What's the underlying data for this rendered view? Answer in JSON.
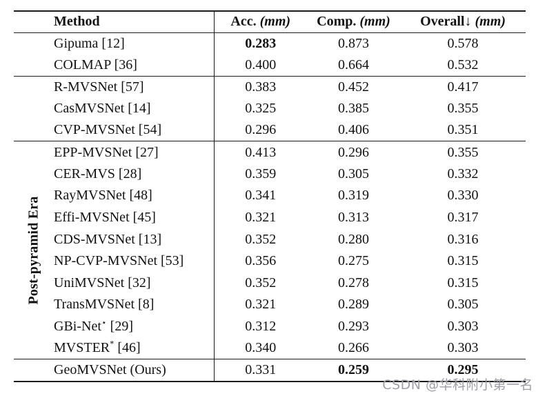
{
  "page": {
    "background": "#ffffff",
    "text_color": "#121212",
    "rule_color": "#1a1a1a"
  },
  "table": {
    "header": {
      "method": "Method",
      "metrics": [
        {
          "label": "Acc.",
          "unit": "(mm)"
        },
        {
          "label": "Comp.",
          "unit": "(mm)"
        },
        {
          "label": "Overall↓",
          "unit": "(mm)"
        }
      ]
    },
    "group_label": "Post-pyramid Era",
    "groups": [
      {
        "name": "traditional",
        "rows": [
          {
            "method": "Gipuma [12]",
            "acc": "0.283",
            "comp": "0.873",
            "overall": "0.578",
            "bold": [
              "acc"
            ]
          },
          {
            "method": "COLMAP [36]",
            "acc": "0.400",
            "comp": "0.664",
            "overall": "0.532",
            "bold": []
          }
        ]
      },
      {
        "name": "pyramid",
        "rows": [
          {
            "method": "R-MVSNet [57]",
            "acc": "0.383",
            "comp": "0.452",
            "overall": "0.417",
            "bold": []
          },
          {
            "method": "CasMVSNet [14]",
            "acc": "0.325",
            "comp": "0.385",
            "overall": "0.355",
            "bold": []
          },
          {
            "method": "CVP-MVSNet [54]",
            "acc": "0.296",
            "comp": "0.406",
            "overall": "0.351",
            "bold": []
          }
        ]
      },
      {
        "name": "post-pyramid-era",
        "rows": [
          {
            "method": "EPP-MVSNet [27]",
            "acc": "0.413",
            "comp": "0.296",
            "overall": "0.355",
            "bold": []
          },
          {
            "method": "CER-MVS [28]",
            "acc": "0.359",
            "comp": "0.305",
            "overall": "0.332",
            "bold": []
          },
          {
            "method": "RayMVSNet [48]",
            "acc": "0.341",
            "comp": "0.319",
            "overall": "0.330",
            "bold": []
          },
          {
            "method": "Effi-MVSNet [45]",
            "acc": "0.321",
            "comp": "0.313",
            "overall": "0.317",
            "bold": []
          },
          {
            "method": "CDS-MVSNet [13]",
            "acc": "0.352",
            "comp": "0.280",
            "overall": "0.316",
            "bold": []
          },
          {
            "method": "NP-CVP-MVSNet [53]",
            "acc": "0.356",
            "comp": "0.275",
            "overall": "0.315",
            "bold": []
          },
          {
            "method": "UniMVSNet [32]",
            "acc": "0.352",
            "comp": "0.278",
            "overall": "0.315",
            "bold": []
          },
          {
            "method": "TransMVSNet [8]",
            "acc": "0.321",
            "comp": "0.289",
            "overall": "0.305",
            "bold": []
          },
          {
            "method": "GBi-Net⋆ [29]",
            "acc": "0.312",
            "comp": "0.293",
            "overall": "0.303",
            "bold": []
          },
          {
            "method": "MVSTER* [46]",
            "acc": "0.340",
            "comp": "0.266",
            "overall": "0.303",
            "bold": []
          }
        ]
      },
      {
        "name": "ours",
        "rows": [
          {
            "method": "GeoMVSNet (Ours)",
            "acc": "0.331",
            "comp": "0.259",
            "overall": "0.295",
            "bold": [
              "comp",
              "overall"
            ]
          }
        ]
      }
    ]
  },
  "watermark": {
    "text": "CSDN @华科附小第一名",
    "color": "#9e9ea6"
  }
}
